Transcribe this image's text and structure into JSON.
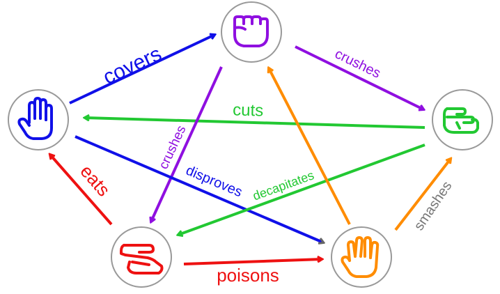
{
  "nodes": {
    "rock": {
      "icon": "fist-icon",
      "color": "#8f0fe0"
    },
    "paper": {
      "icon": "open-hand-icon",
      "color": "#1010e8"
    },
    "scissors": {
      "icon": "scissors-hand-icon",
      "color": "#22c832"
    },
    "lizard": {
      "icon": "lizard-hand-icon",
      "color": "#ee1111"
    },
    "spock": {
      "icon": "spock-hand-icon",
      "color": "#ff8c00"
    }
  },
  "edges": {
    "covers": {
      "label": "covers",
      "from": "paper",
      "to": "rock",
      "color": "#1010e8"
    },
    "crushes_sc": {
      "label": "crushes",
      "from": "rock",
      "to": "scissors",
      "color": "#8f0fe0"
    },
    "cuts": {
      "label": "cuts",
      "from": "scissors",
      "to": "paper",
      "color": "#22c832"
    },
    "crushes_li": {
      "label": "crushes",
      "from": "rock",
      "to": "lizard",
      "color": "#8f0fe0"
    },
    "disproves": {
      "label": "disproves",
      "from": "paper",
      "to": "spock",
      "color": "#1010e8"
    },
    "decapitates": {
      "label": "decapitates",
      "from": "scissors",
      "to": "lizard",
      "color": "#22c832"
    },
    "eats": {
      "label": "eats",
      "from": "lizard",
      "to": "paper",
      "color": "#ee1111"
    },
    "poisons": {
      "label": "poisons",
      "from": "lizard",
      "to": "spock",
      "color": "#ee1111"
    },
    "smashes": {
      "label": "smashes",
      "from": "spock",
      "to": "scissors",
      "color": "#ff8c00"
    },
    "vaporizes": {
      "label": "",
      "from": "spock",
      "to": "rock",
      "color": "#ff8c00"
    }
  },
  "label_colors": {
    "smashes": "#777777"
  }
}
